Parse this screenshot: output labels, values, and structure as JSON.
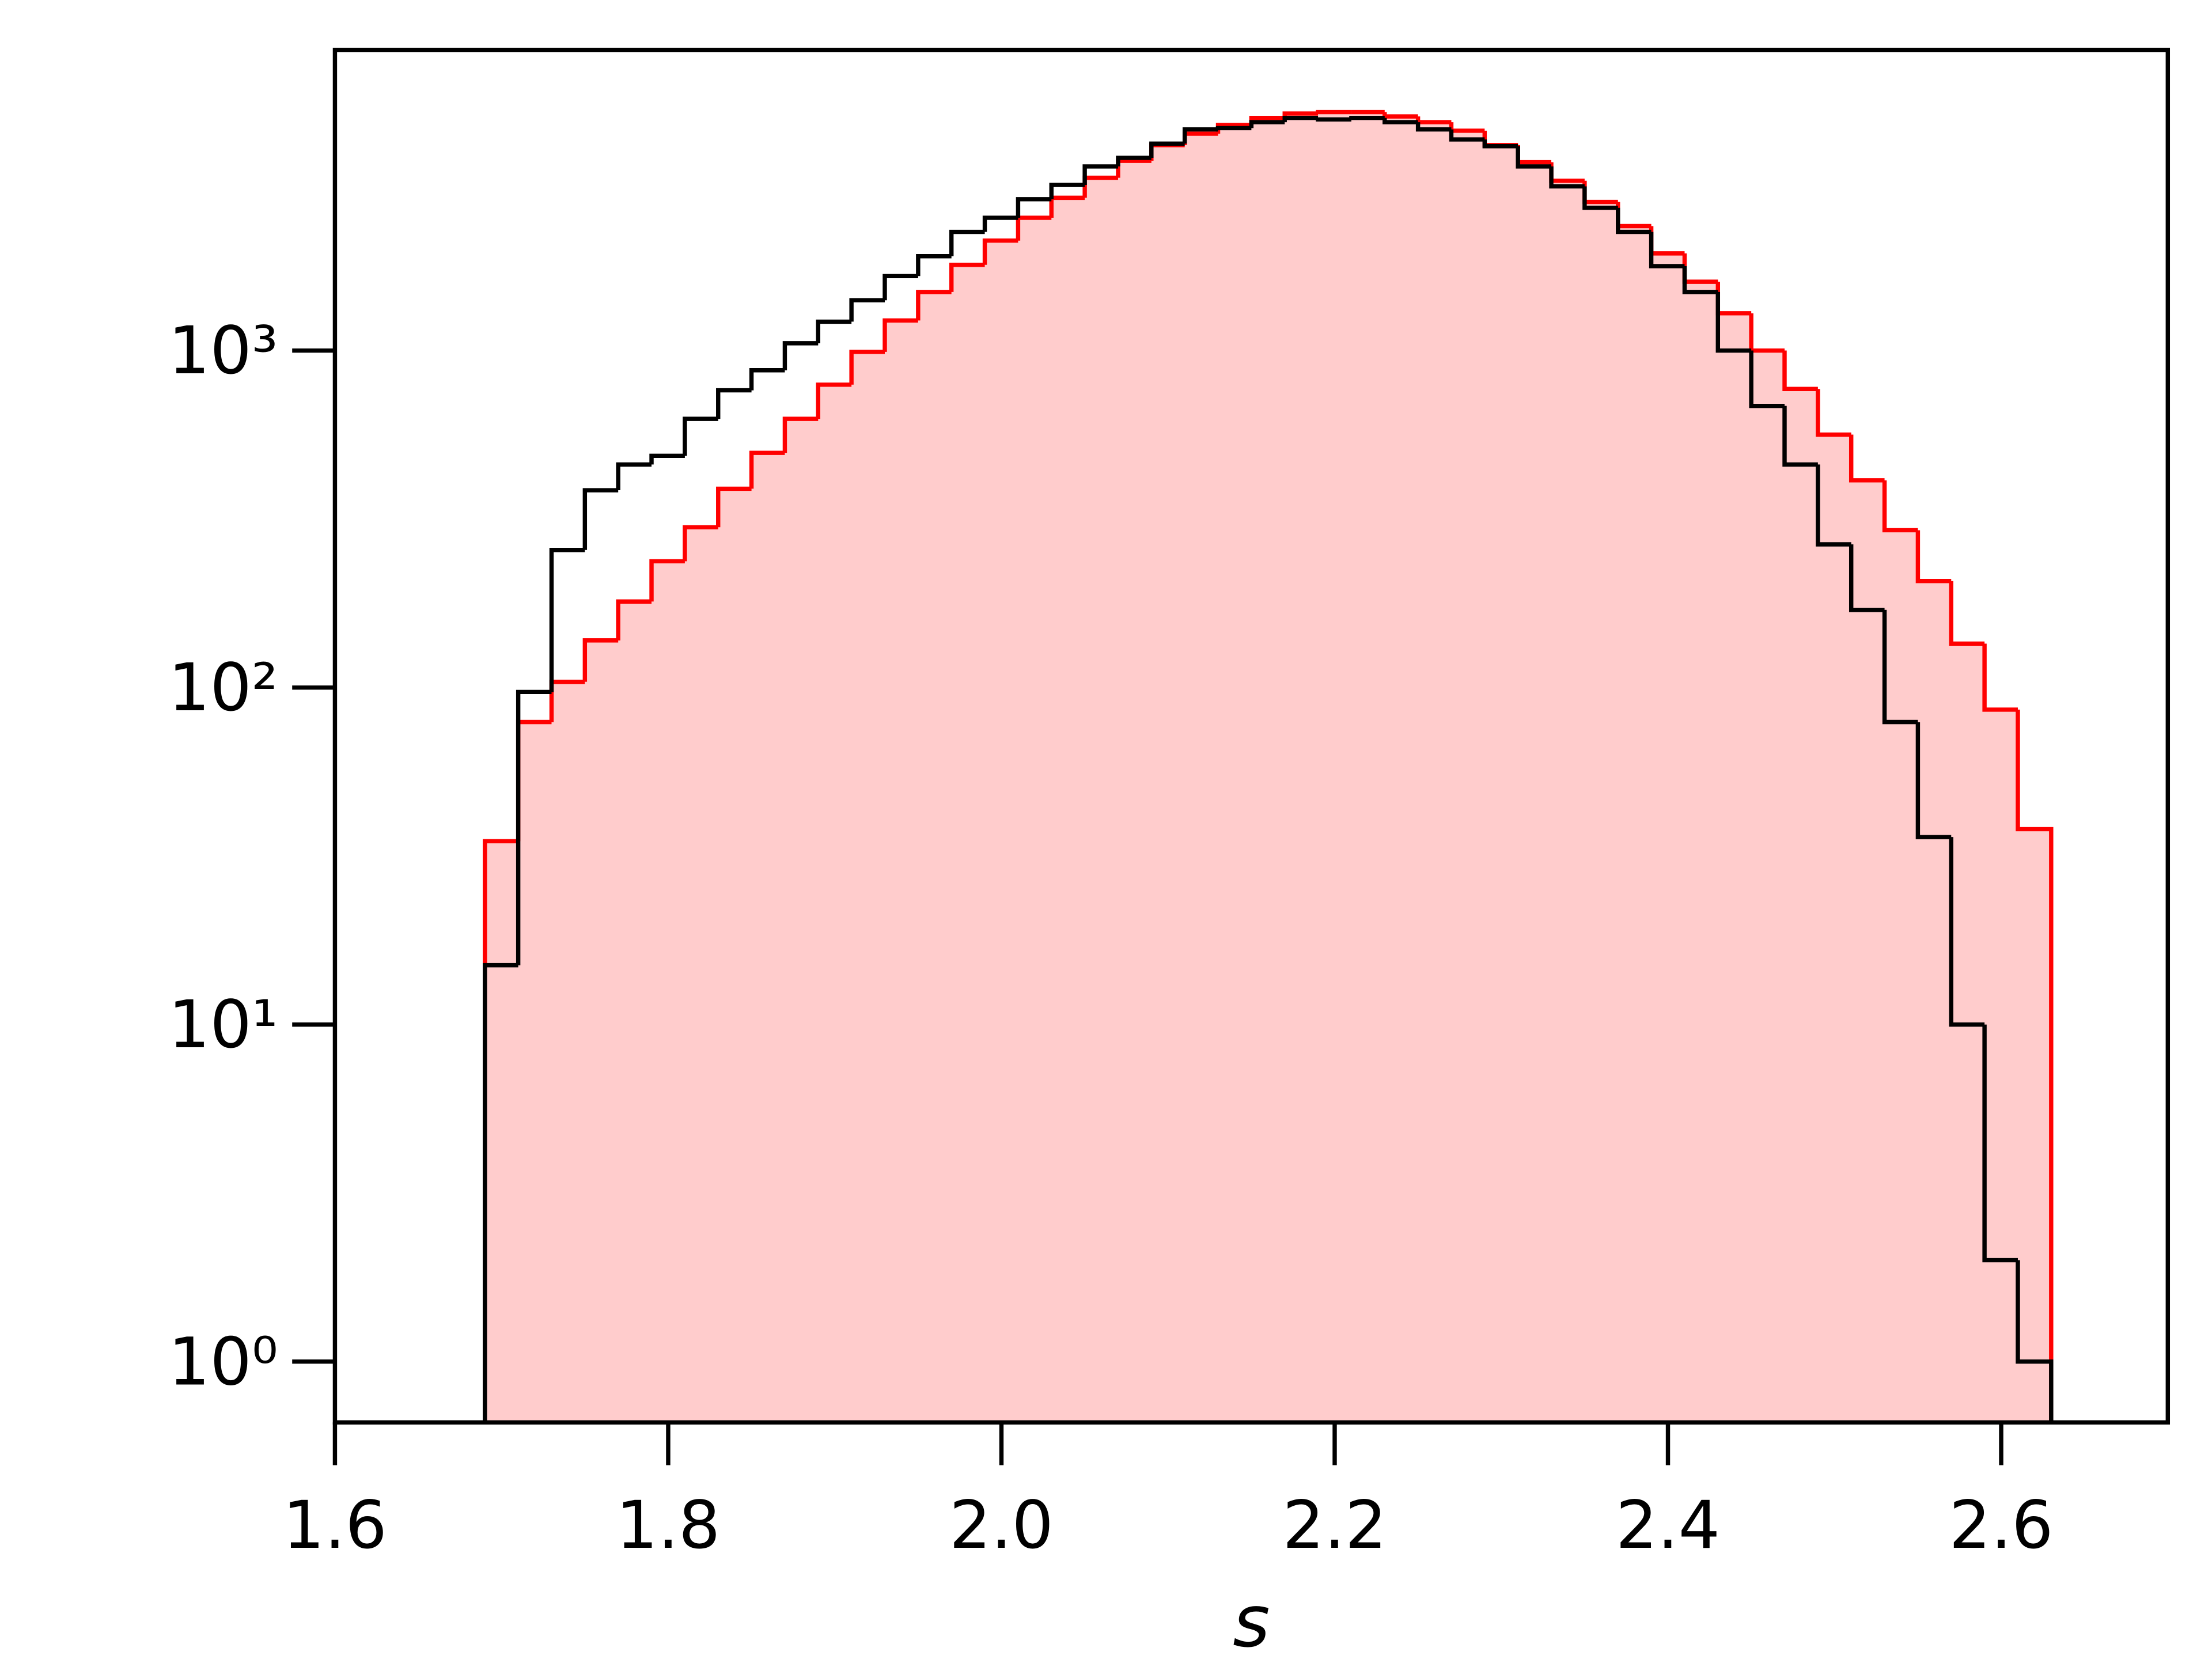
{
  "chart_data": {
    "type": "histogram",
    "x_label": "s",
    "bins": [
      1.69,
      1.71,
      1.73,
      1.75,
      1.77,
      1.79,
      1.81,
      1.83,
      1.85,
      1.87,
      1.89,
      1.91,
      1.93,
      1.95,
      1.97,
      1.99,
      2.01,
      2.03,
      2.05,
      2.07,
      2.09,
      2.11,
      2.13,
      2.15,
      2.17,
      2.19,
      2.21,
      2.23,
      2.25,
      2.27,
      2.29,
      2.31,
      2.33,
      2.35,
      2.37,
      2.39,
      2.41,
      2.43,
      2.45,
      2.47,
      2.49,
      2.51,
      2.53,
      2.55,
      2.57,
      2.59,
      2.61,
      2.63
    ],
    "series": [
      {
        "color": "#ff0000",
        "fill": "#ffcccc",
        "values": [
          35,
          79,
          104,
          138,
          180,
          237,
          299,
          389,
          497,
          627,
          792,
          991,
          1228,
          1492,
          1796,
          2119,
          2477,
          2839,
          3256,
          3656,
          4070,
          4400,
          4670,
          4900,
          5050,
          5100,
          5100,
          4950,
          4760,
          4490,
          4070,
          3620,
          3190,
          2760,
          2340,
          1942,
          1600,
          1290,
          1000,
          769,
          563,
          412,
          293,
          207,
          135,
          86,
          38
        ]
      },
      {
        "color": "#000000",
        "values": [
          15,
          97,
          256,
          385,
          459,
          487,
          627,
          762,
          874,
          1051,
          1218,
          1410,
          1663,
          1905,
          2249,
          2477,
          2812,
          3100,
          3518,
          3730,
          4110,
          4530,
          4570,
          4760,
          4900,
          4850,
          4900,
          4760,
          4530,
          4230,
          4040,
          3518,
          3070,
          2652,
          2249,
          1780,
          1492,
          1000,
          685,
          459,
          266,
          170,
          79,
          36,
          10,
          2,
          1
        ]
      }
    ],
    "xlim": [
      1.6,
      2.7
    ],
    "xticks": [
      1.6,
      1.8,
      {
        "value": 2,
        "label": "2.0"
      },
      2.2,
      2.4,
      2.6
    ],
    "ylim": [
      0.66,
      7800
    ],
    "log_y": true,
    "yticks": [
      {
        "value": 1,
        "label": "10⁰"
      },
      {
        "value": 10,
        "label": "10¹"
      },
      {
        "value": 100,
        "label": "10²"
      },
      {
        "value": 1000,
        "label": "10³"
      }
    ]
  }
}
